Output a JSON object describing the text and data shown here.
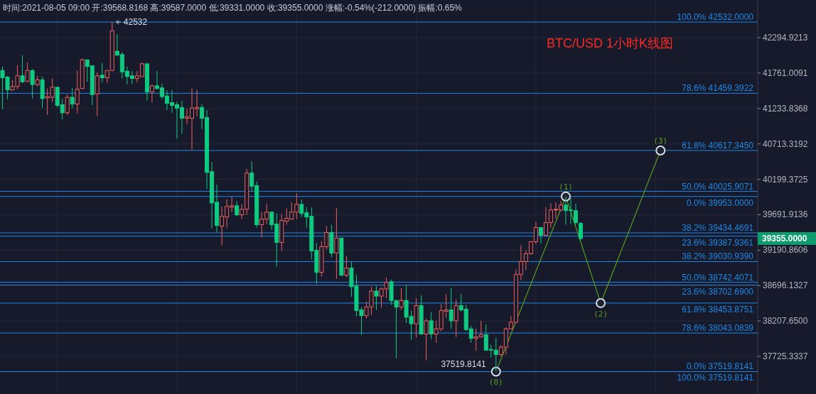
{
  "chart_data": {
    "type": "candlestick",
    "title": "BTC/USD 1小时K线图",
    "subtitle": "时间:2021-08-05 09:00 开:39568.8168 高:39587.0000 低:39331.0000 收:39355.0000 涨幅:-0.54%(-212.0000) 振幅:0.65%",
    "categories": [
      null,
      null,
      null,
      null,
      null,
      null,
      null,
      null,
      null,
      null,
      null,
      null,
      null,
      null,
      null,
      null,
      null,
      null,
      null,
      null,
      null,
      null,
      null,
      null,
      null,
      null,
      null,
      null,
      null,
      null,
      null,
      null,
      null,
      null,
      null,
      null,
      null,
      null,
      null,
      null,
      null,
      null,
      null,
      null,
      null,
      null,
      null,
      null,
      null,
      null,
      null,
      null,
      null,
      null,
      null,
      null,
      null,
      null,
      null,
      null,
      null,
      null,
      null,
      null,
      null,
      null,
      null,
      null,
      null,
      null,
      null,
      null,
      null,
      null,
      null,
      null,
      null,
      null,
      null,
      null,
      null,
      null,
      null,
      null,
      null,
      null,
      null,
      null,
      null,
      null,
      null,
      null,
      null,
      null,
      null,
      null,
      null,
      null,
      null,
      null,
      null,
      null,
      null,
      null,
      null,
      null,
      null,
      null,
      null,
      null,
      null,
      null,
      null,
      null,
      null,
      null,
      null,
      null,
      null,
      null,
      null,
      null,
      null,
      null,
      null,
      null,
      null,
      null,
      null,
      null,
      null,
      null,
      null,
      null,
      null,
      null,
      null,
      null,
      null,
      null,
      null,
      null,
      null,
      null,
      null,
      null,
      null,
      null,
      null,
      null,
      null,
      null
    ],
    "ohlc": [
      [
        41800,
        41860,
        41220,
        41690
      ],
      [
        41700,
        41720,
        41370,
        41510
      ],
      [
        41510,
        41660,
        41500,
        41560
      ],
      [
        41560,
        41880,
        41520,
        41720
      ],
      [
        41720,
        42030,
        41610,
        41630
      ],
      [
        41640,
        41920,
        41620,
        41800
      ],
      [
        41800,
        41820,
        41380,
        41590
      ],
      [
        41590,
        41720,
        41560,
        41660
      ],
      [
        41660,
        41710,
        41240,
        41380
      ],
      [
        41390,
        41530,
        41140,
        41410
      ],
      [
        41400,
        41680,
        41330,
        41550
      ],
      [
        41550,
        41550,
        41250,
        41280
      ],
      [
        41290,
        41380,
        41070,
        41170
      ],
      [
        41170,
        41440,
        41140,
        41400
      ],
      [
        41400,
        41540,
        41240,
        41300
      ],
      [
        41300,
        41800,
        41160,
        41520
      ],
      [
        41530,
        41980,
        41530,
        41960
      ],
      [
        41960,
        41960,
        41630,
        41860
      ],
      [
        41870,
        41870,
        41280,
        41440
      ],
      [
        41450,
        41770,
        41120,
        41720
      ],
      [
        41730,
        41910,
        41620,
        41690
      ],
      [
        41690,
        41800,
        41610,
        41800
      ],
      [
        41800,
        42532,
        41790,
        42400
      ],
      [
        42090,
        42350,
        42010,
        42030
      ],
      [
        42040,
        42080,
        41680,
        41780
      ],
      [
        41790,
        41860,
        41590,
        41710
      ],
      [
        41720,
        41790,
        41600,
        41680
      ],
      [
        41680,
        41790,
        41620,
        41720
      ],
      [
        41710,
        41920,
        41700,
        41900
      ],
      [
        41900,
        41900,
        41350,
        41480
      ],
      [
        41480,
        41590,
        41320,
        41570
      ],
      [
        41570,
        41790,
        41520,
        41530
      ],
      [
        41540,
        41600,
        41370,
        41410
      ],
      [
        41420,
        41500,
        41210,
        41310
      ],
      [
        41320,
        41510,
        41170,
        41280
      ],
      [
        41290,
        41330,
        40790,
        41240
      ],
      [
        41250,
        41350,
        40860,
        41090
      ],
      [
        41090,
        41230,
        41000,
        41110
      ],
      [
        41090,
        41530,
        40630,
        41240
      ],
      [
        41230,
        41510,
        41120,
        41250
      ],
      [
        41250,
        41300,
        40930,
        41090
      ],
      [
        41100,
        41210,
        40060,
        40300
      ],
      [
        40310,
        40450,
        39500,
        39860
      ],
      [
        39870,
        40120,
        39440,
        39540
      ],
      [
        39530,
        39810,
        39260,
        39670
      ],
      [
        39660,
        39910,
        39510,
        39810
      ],
      [
        39800,
        39950,
        39730,
        39820
      ],
      [
        39820,
        39890,
        39670,
        39690
      ],
      [
        39690,
        39840,
        39630,
        39770
      ],
      [
        39770,
        40350,
        39690,
        40290
      ],
      [
        40290,
        40460,
        40020,
        40100
      ],
      [
        40110,
        40170,
        39510,
        39550
      ],
      [
        39550,
        39730,
        39370,
        39630
      ],
      [
        39630,
        39850,
        39560,
        39730
      ],
      [
        39730,
        39730,
        39480,
        39550
      ],
      [
        39560,
        39710,
        38960,
        39300
      ],
      [
        39300,
        39700,
        39180,
        39610
      ],
      [
        39600,
        39780,
        39550,
        39640
      ],
      [
        39630,
        39870,
        39620,
        39730
      ],
      [
        39730,
        40000,
        39630,
        39840
      ],
      [
        39840,
        39910,
        39660,
        39710
      ],
      [
        39720,
        39800,
        39510,
        39660
      ],
      [
        39670,
        39800,
        39060,
        39180
      ],
      [
        39190,
        39290,
        38720,
        38880
      ],
      [
        38880,
        39320,
        38820,
        39240
      ],
      [
        39240,
        39530,
        39200,
        39440
      ],
      [
        39440,
        39550,
        39090,
        39150
      ],
      [
        39150,
        39790,
        38790,
        39360
      ],
      [
        39360,
        39360,
        38830,
        38840
      ],
      [
        38840,
        39110,
        38810,
        38940
      ],
      [
        38940,
        39030,
        38540,
        38680
      ],
      [
        38690,
        38850,
        38270,
        38350
      ],
      [
        38360,
        38400,
        38020,
        38280
      ],
      [
        38280,
        38470,
        38240,
        38400
      ],
      [
        38400,
        38680,
        38290,
        38620
      ],
      [
        38620,
        38690,
        38360,
        38550
      ],
      [
        38550,
        38670,
        38390,
        38650
      ],
      [
        38650,
        38810,
        38520,
        38740
      ],
      [
        38750,
        38780,
        38430,
        38490
      ],
      [
        38490,
        38490,
        37700,
        38400
      ],
      [
        38400,
        38660,
        38360,
        38490
      ],
      [
        38490,
        38700,
        38180,
        38260
      ],
      [
        38270,
        38350,
        37950,
        38170
      ],
      [
        38170,
        38520,
        37980,
        38420
      ],
      [
        38420,
        38560,
        38020,
        38030
      ],
      [
        38030,
        38240,
        37670,
        38210
      ],
      [
        38210,
        38330,
        37960,
        38030
      ],
      [
        38030,
        38210,
        37910,
        38100
      ],
      [
        38100,
        38440,
        38070,
        38350
      ],
      [
        38340,
        38580,
        38250,
        38360
      ],
      [
        38360,
        38660,
        38100,
        38210
      ],
      [
        38210,
        38500,
        37990,
        38420
      ],
      [
        38420,
        38580,
        38340,
        38360
      ],
      [
        38370,
        38430,
        38070,
        38090
      ],
      [
        38100,
        38140,
        37910,
        37970
      ],
      [
        37970,
        38100,
        37800,
        37990
      ],
      [
        37990,
        38210,
        37980,
        38020
      ],
      [
        38020,
        38160,
        37800,
        37810
      ],
      [
        37820,
        37880,
        37710,
        37810
      ],
      [
        37810,
        37980,
        37519.8141,
        37750
      ],
      [
        37750,
        37880,
        37730,
        37850
      ],
      [
        37850,
        38120,
        37750,
        38100
      ],
      [
        38100,
        38280,
        38090,
        38190
      ],
      [
        38190,
        38920,
        38180,
        38850
      ],
      [
        38850,
        39260,
        38770,
        39030
      ],
      [
        39030,
        39190,
        38910,
        39140
      ],
      [
        39140,
        39320,
        39130,
        39310
      ],
      [
        39310,
        39590,
        39280,
        39510
      ],
      [
        39510,
        39510,
        39280,
        39400
      ],
      [
        39400,
        39800,
        39390,
        39580
      ],
      [
        39580,
        39850,
        39510,
        39760
      ],
      [
        39760,
        39870,
        39640,
        39770
      ],
      [
        39760,
        39890,
        39740,
        39830
      ],
      [
        39830,
        39953,
        39550,
        39750
      ],
      [
        39760,
        39930,
        39560,
        39750
      ],
      [
        39750,
        39850,
        39550,
        39580
      ],
      [
        39568.8168,
        39587,
        39331,
        39355
      ],
      null,
      null,
      null,
      null,
      null,
      null,
      null,
      null,
      null,
      null,
      null,
      null,
      null,
      null,
      null,
      null,
      null,
      null,
      null,
      null,
      null,
      null,
      null,
      null,
      null,
      null,
      null,
      null,
      null,
      null,
      null,
      null,
      null,
      null,
      null
    ],
    "colors": [
      "#0ecb81",
      "#0ecb81",
      "#f0605d",
      "#f0605d",
      "#0ecb81",
      "#f0605d",
      "#0ecb81",
      "#f0605d",
      "#0ecb81",
      "#f0605d",
      "#f0605d",
      "#0ecb81",
      "#0ecb81",
      "#f0605d",
      "#0ecb81",
      "#f0605d",
      "#f0605d",
      "#0ecb81",
      "#0ecb81",
      "#f0605d",
      "#0ecb81",
      "#f0605d",
      "#f0605d",
      "#0ecb81",
      "#0ecb81",
      "#0ecb81",
      "#0ecb81",
      "#f0605d",
      "#f0605d",
      "#0ecb81",
      "#f0605d",
      "#0ecb81",
      "#0ecb81",
      "#0ecb81",
      "#0ecb81",
      "#0ecb81",
      "#0ecb81",
      "#f0605d",
      "#f0605d",
      "#f0605d",
      "#0ecb81",
      "#0ecb81",
      "#0ecb81",
      "#0ecb81",
      "#f0605d",
      "#f0605d",
      "#f0605d",
      "#0ecb81",
      "#f0605d",
      "#f0605d",
      "#0ecb81",
      "#0ecb81",
      "#f0605d",
      "#f0605d",
      "#0ecb81",
      "#0ecb81",
      "#f0605d",
      "#f0605d",
      "#f0605d",
      "#f0605d",
      "#0ecb81",
      "#0ecb81",
      "#0ecb81",
      "#0ecb81",
      "#f0605d",
      "#f0605d",
      "#0ecb81",
      "#f0605d",
      "#0ecb81",
      "#f0605d",
      "#0ecb81",
      "#0ecb81",
      "#0ecb81",
      "#f0605d",
      "#f0605d",
      "#0ecb81",
      "#f0605d",
      "#f0605d",
      "#0ecb81",
      "#0ecb81",
      "#f0605d",
      "#0ecb81",
      "#0ecb81",
      "#f0605d",
      "#0ecb81",
      "#f0605d",
      "#0ecb81",
      "#f0605d",
      "#f0605d",
      "#f0605d",
      "#0ecb81",
      "#f0605d",
      "#0ecb81",
      "#0ecb81",
      "#0ecb81",
      "#f0605d",
      "#f0605d",
      "#0ecb81",
      "#0ecb81",
      "#0ecb81",
      "#f0605d",
      "#f0605d",
      "#f0605d",
      "#f0605d",
      "#f0605d",
      "#f0605d",
      "#f0605d",
      "#f0605d",
      "#0ecb81",
      "#f0605d",
      "#f0605d",
      "#f0605d",
      "#f0605d",
      "#0ecb81",
      "#0ecb81",
      "#0ecb81",
      "#0ecb81",
      null,
      null,
      null,
      null,
      null,
      null,
      null,
      null,
      null,
      null,
      null,
      null,
      null,
      null,
      null,
      null,
      null,
      null,
      null,
      null,
      null,
      null,
      null,
      null,
      null,
      null,
      null,
      null,
      null,
      null,
      null,
      null,
      null,
      null,
      null
    ],
    "series": [
      {
        "type": "line",
        "color": "#5a9e1f",
        "marker": "circle",
        "line_style": "solid",
        "values": [
          null,
          null,
          null,
          null,
          null,
          null,
          null,
          null,
          null,
          null,
          null,
          null,
          null,
          null,
          null,
          null,
          null,
          null,
          null,
          null,
          null,
          null,
          null,
          null,
          null,
          null,
          null,
          null,
          null,
          null,
          null,
          null,
          null,
          null,
          null,
          null,
          null,
          null,
          null,
          null,
          null,
          null,
          null,
          null,
          null,
          null,
          null,
          null,
          null,
          null,
          null,
          null,
          null,
          null,
          null,
          null,
          null,
          null,
          null,
          null,
          null,
          null,
          null,
          null,
          null,
          null,
          null,
          null,
          null,
          null,
          null,
          null,
          null,
          null,
          null,
          null,
          null,
          null,
          null,
          null,
          null,
          null,
          null,
          null,
          null,
          null,
          null,
          null,
          null,
          null,
          null,
          null,
          null,
          null,
          null,
          null,
          null,
          null,
          null,
          37519.8141,
          null,
          null,
          null,
          null,
          null,
          null,
          null,
          null,
          null,
          null,
          null,
          null,
          null,
          39953,
          null,
          null,
          null,
          null,
          null,
          null,
          38453.8751,
          null,
          null,
          null,
          null,
          null,
          null,
          null,
          null,
          null,
          null,
          null,
          40617.345,
          null,
          null,
          null,
          null,
          null,
          null,
          null,
          null,
          null,
          null,
          null,
          null,
          null,
          null,
          null,
          null,
          null,
          null,
          null
        ]
      }
    ],
    "ref_lines": [
      {
        "axis": "y",
        "value": 42532,
        "label": "100.0% 42532.0000",
        "color": "#1e88e5"
      },
      {
        "axis": "y",
        "value": 41459.3922,
        "label": "78.6% 41459.3922",
        "color": "#1e88e5"
      },
      {
        "axis": "y",
        "value": 40617.345,
        "label": "61.8% 40617.3450",
        "color": "#1e88e5"
      },
      {
        "axis": "y",
        "value": 40025.9071,
        "label": "50.0% 40025.9071",
        "color": "#1e88e5"
      },
      {
        "axis": "y",
        "value": 39953,
        "label": "0.0% 39953.0000",
        "color": "#1e88e5"
      },
      {
        "axis": "y",
        "value": 39434.4691,
        "label": "38.2% 39434.4691",
        "color": "#1e88e5"
      },
      {
        "axis": "y",
        "value": 39387.9361,
        "label": "23.6% 39387.9361",
        "color": "#1e88e5"
      },
      {
        "axis": "y",
        "value": 39030.939,
        "label": "38.2% 39030.9390",
        "color": "#1e88e5"
      },
      {
        "axis": "y",
        "value": 38742.4071,
        "label": "50.0% 38742.4071",
        "color": "#1e88e5"
      },
      {
        "axis": "y",
        "value": 38702.69,
        "label": "23.6% 38702.6900",
        "color": "#1e88e5"
      },
      {
        "axis": "y",
        "value": 38453.8751,
        "label": "61.8% 38453.8751",
        "color": "#1e88e5"
      },
      {
        "axis": "y",
        "value": 38043.0839,
        "label": "78.6% 38043.0839",
        "color": "#1e88e5"
      },
      {
        "axis": "y",
        "value": 37519.8141,
        "label": "0.0% 37519.8141",
        "color": "#1e88e5"
      }
    ],
    "annotations": [
      {
        "text": "42532",
        "y": 42532
      },
      {
        "text": "37519.8141",
        "y": 37519.8141
      },
      "(0)",
      "(1)",
      "(2)",
      "(3)",
      "39355.0000",
      "100.0% 37519.8141"
    ],
    "log": "y",
    "ylim": [
      37220,
      42870
    ],
    "yticks": [
      42294.9213,
      41761.0091,
      41233.8368,
      40713.3192,
      40199.3725,
      39691.9136,
      39190.8606,
      38696.1327,
      {
        "value": 38207.65,
        "label": "38207.6500"
      },
      37725.3337
    ],
    "tick_labels": "y",
    "grid": true
  }
}
